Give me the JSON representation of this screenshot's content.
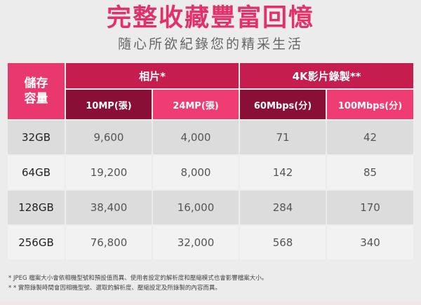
{
  "title": "完整收藏豐富回憶",
  "subtitle": "隨心所欲紀錄您的精采生活",
  "table": {
    "capacity_header": [
      "儲存",
      "容量"
    ],
    "groups": [
      {
        "label": "相片*"
      },
      {
        "label": "4K影片錄製**"
      }
    ],
    "columns": [
      "10MP(張)",
      "24MP(張)",
      "60Mbps(分)",
      "100Mbps(分)"
    ],
    "rows": [
      {
        "capacity": "32GB",
        "cells": [
          "9,600",
          "4,000",
          "71",
          "42"
        ]
      },
      {
        "capacity": "64GB",
        "cells": [
          "19,200",
          "8,000",
          "142",
          "85"
        ]
      },
      {
        "capacity": "128GB",
        "cells": [
          "38,400",
          "16,000",
          "284",
          "170"
        ]
      },
      {
        "capacity": "256GB",
        "cells": [
          "76,800",
          "32,000",
          "568",
          "340"
        ]
      }
    ]
  },
  "notes": [
    "* JPEG 檔案大小會依相機型號和預設值而異、使用者設定的解析度和壓縮模式也會影響檔案大小。",
    "* * 實際錄製時間會因相機型號、選取的解析度、壓縮設定及所錄製的內容而異。"
  ],
  "colors": {
    "accent": "#e3306a",
    "group_header": "#c41d4e",
    "dark_subheader": "#8a0f36",
    "light_subheader": "#ef3d74"
  }
}
